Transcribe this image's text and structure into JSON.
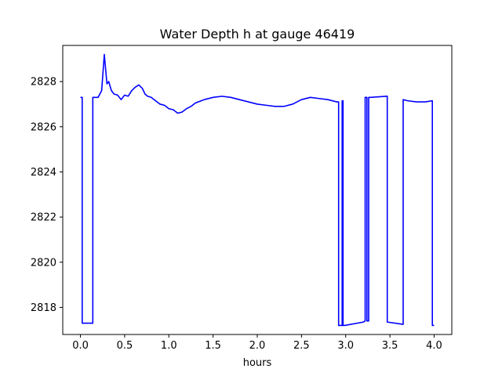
{
  "chart_data": {
    "type": "line",
    "title": "Water Depth h at gauge 46419",
    "xlabel": "hours",
    "ylabel": "",
    "xlim": [
      -0.2,
      4.2
    ],
    "ylim": [
      2816.8,
      2829.6
    ],
    "xticks": [
      0.0,
      0.5,
      1.0,
      1.5,
      2.0,
      2.5,
      3.0,
      3.5,
      4.0
    ],
    "xtick_labels": [
      "0.0",
      "0.5",
      "1.0",
      "1.5",
      "2.0",
      "2.5",
      "3.0",
      "3.5",
      "4.0"
    ],
    "yticks": [
      2818,
      2820,
      2822,
      2824,
      2826,
      2828
    ],
    "ytick_labels": [
      "2818",
      "2820",
      "2822",
      "2824",
      "2826",
      "2828"
    ],
    "grid": false,
    "series": [
      {
        "color": "#0000ff",
        "x": [
          0.0,
          0.02,
          0.02,
          0.14,
          0.14,
          0.2,
          0.24,
          0.27,
          0.3,
          0.32,
          0.35,
          0.38,
          0.42,
          0.46,
          0.5,
          0.54,
          0.58,
          0.62,
          0.66,
          0.7,
          0.73,
          0.76,
          0.8,
          0.85,
          0.9,
          0.95,
          1.0,
          1.05,
          1.1,
          1.15,
          1.2,
          1.25,
          1.3,
          1.4,
          1.5,
          1.6,
          1.7,
          1.8,
          1.9,
          2.0,
          2.1,
          2.2,
          2.3,
          2.4,
          2.5,
          2.6,
          2.7,
          2.8,
          2.9,
          2.92,
          2.92,
          2.96,
          2.96,
          2.97,
          2.97,
          2.99,
          2.99,
          3.2,
          3.22,
          3.22,
          3.24,
          3.24,
          3.26,
          3.26,
          3.28,
          3.28,
          3.47,
          3.47,
          3.65,
          3.65,
          3.7,
          3.8,
          3.9,
          3.98,
          3.98,
          4.0
        ],
        "y": [
          2827.3,
          2827.3,
          2817.3,
          2817.3,
          2827.3,
          2827.3,
          2827.6,
          2829.2,
          2827.9,
          2828.0,
          2827.6,
          2827.45,
          2827.4,
          2827.2,
          2827.4,
          2827.35,
          2827.6,
          2827.75,
          2827.85,
          2827.7,
          2827.45,
          2827.35,
          2827.3,
          2827.15,
          2827.0,
          2826.95,
          2826.8,
          2826.75,
          2826.6,
          2826.65,
          2826.8,
          2826.9,
          2827.05,
          2827.2,
          2827.3,
          2827.35,
          2827.3,
          2827.2,
          2827.1,
          2827.0,
          2826.95,
          2826.9,
          2826.9,
          2827.0,
          2827.2,
          2827.3,
          2827.25,
          2827.2,
          2827.1,
          2827.1,
          2817.2,
          2817.2,
          2827.15,
          2827.15,
          2817.2,
          2817.2,
          2817.2,
          2817.35,
          2817.4,
          2827.3,
          2827.3,
          2817.4,
          2817.4,
          2827.3,
          2827.3,
          2827.3,
          2827.35,
          2817.35,
          2817.25,
          2827.2,
          2827.15,
          2827.1,
          2827.1,
          2827.15,
          2817.2,
          2817.2
        ]
      }
    ]
  }
}
